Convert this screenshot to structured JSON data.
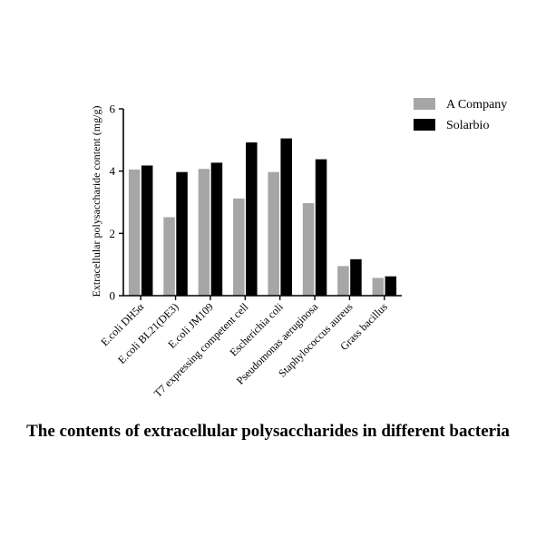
{
  "caption": "The contents of extracellular polysaccharides in different bacteria",
  "chart_data": {
    "type": "bar",
    "title": "",
    "xlabel": "",
    "ylabel": "Extracellular polysaccharide content (mg/g)",
    "ylim": [
      0,
      6
    ],
    "yticks": [
      0,
      2,
      4,
      6
    ],
    "grid": false,
    "legend_position": "top-right",
    "categories": [
      "E.coli DH5α",
      "E.coli BL21(DE3)",
      "E.coli JM109",
      "T7 expressing competent cell",
      "Escherichia coli",
      "Pseudomonas aeruginosa",
      "Staphylococcus aureus",
      "Grass bacillus"
    ],
    "series": [
      {
        "name": "A Company",
        "color": "#a6a6a6",
        "values": [
          4.05,
          2.52,
          4.07,
          3.12,
          3.97,
          2.97,
          0.95,
          0.57
        ]
      },
      {
        "name": "Solarbio",
        "color": "#000000",
        "values": [
          4.18,
          3.97,
          4.27,
          4.92,
          5.05,
          4.38,
          1.17,
          0.62
        ]
      }
    ]
  }
}
